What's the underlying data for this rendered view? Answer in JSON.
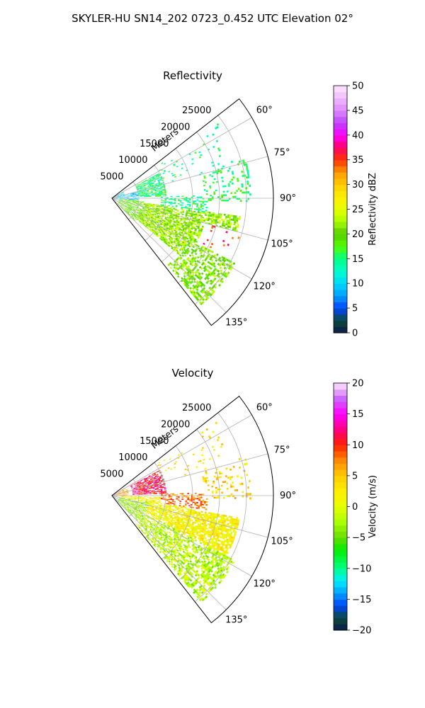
{
  "figure": {
    "title": "SKYLER-HU  SN14_202  0723_0.452 UTC Elevation 02°"
  },
  "chart_data": [
    {
      "type": "heatmap",
      "projection": "polar-sector",
      "title": "Reflectivity",
      "range_axis": {
        "label": "Meters",
        "ticks": [
          5000,
          10000,
          15000,
          20000,
          25000
        ],
        "tick_labels": [
          "5000",
          "10000",
          "15000",
          "20000",
          "25000"
        ],
        "lim": [
          0,
          30000
        ]
      },
      "azimuth_axis": {
        "unit": "degrees",
        "lim": [
          52,
          142
        ],
        "ticks": [
          60,
          75,
          90,
          105,
          120,
          135
        ],
        "tick_labels": [
          "60°",
          "75°",
          "90°",
          "105°",
          "120°",
          "135°"
        ]
      },
      "grid": true,
      "colorbar": {
        "label": "Reflectivity dBZ",
        "lim": [
          0,
          50
        ],
        "ticks": [
          0,
          5,
          10,
          15,
          20,
          25,
          30,
          35,
          40,
          45,
          50
        ],
        "tick_labels": [
          "0",
          "5",
          "10",
          "15",
          "20",
          "25",
          "30",
          "35",
          "40",
          "45",
          "50"
        ],
        "stops": [
          {
            "value": 0,
            "color": "#0a1a4a"
          },
          {
            "value": 2.5,
            "color": "#0c4a3a"
          },
          {
            "value": 5,
            "color": "#0044ff"
          },
          {
            "value": 7.5,
            "color": "#00a0ff"
          },
          {
            "value": 10,
            "color": "#00d8ff"
          },
          {
            "value": 12.5,
            "color": "#00ffcc"
          },
          {
            "value": 15,
            "color": "#00ff88"
          },
          {
            "value": 17.5,
            "color": "#55ff00"
          },
          {
            "value": 20,
            "color": "#55cc00"
          },
          {
            "value": 22.5,
            "color": "#aaff00"
          },
          {
            "value": 25,
            "color": "#e6ff00"
          },
          {
            "value": 27.5,
            "color": "#ffee00"
          },
          {
            "value": 30,
            "color": "#ffcc00"
          },
          {
            "value": 32.5,
            "color": "#ff9900"
          },
          {
            "value": 35,
            "color": "#ff3300"
          },
          {
            "value": 37.5,
            "color": "#ff0066"
          },
          {
            "value": 40,
            "color": "#ff00ff"
          },
          {
            "value": 42.5,
            "color": "#bb44ff"
          },
          {
            "value": 45,
            "color": "#dd88ff"
          },
          {
            "value": 47.5,
            "color": "#eebbff"
          },
          {
            "value": 50,
            "color": "#ffe6ff"
          }
        ]
      },
      "regions": [
        {
          "r": [
            0,
            2600
          ],
          "az": [
            62,
            98
          ],
          "value": 10,
          "density": 0.45
        },
        {
          "r": [
            2600,
            5000
          ],
          "az": [
            75,
            95
          ],
          "value": 9,
          "density": 0.5
        },
        {
          "r": [
            5000,
            10000
          ],
          "az": [
            62,
            88
          ],
          "value": 15,
          "density": 0.6
        },
        {
          "r": [
            1500,
            6000
          ],
          "az": [
            95,
            135
          ],
          "value": 20,
          "density": 0.55
        },
        {
          "r": [
            6000,
            24000
          ],
          "az": [
            98,
            130
          ],
          "value": 22,
          "density": 0.72
        },
        {
          "r": [
            16000,
            26000
          ],
          "az": [
            118,
            140
          ],
          "value": 21,
          "density": 0.5
        },
        {
          "r": [
            9000,
            18000
          ],
          "az": [
            88,
            99
          ],
          "value": 15,
          "density": 0.35
        },
        {
          "r": [
            17000,
            26000
          ],
          "az": [
            74,
            92
          ],
          "value": 16,
          "density": 0.22
        },
        {
          "r": [
            10000,
            24000
          ],
          "az": [
            55,
            75
          ],
          "value": 15,
          "density": 0.06
        },
        {
          "r": [
            18000,
            25000
          ],
          "az": [
            105,
            118
          ],
          "value": 36,
          "density": 0.06
        }
      ]
    },
    {
      "type": "heatmap",
      "projection": "polar-sector",
      "title": "Velocity",
      "range_axis": {
        "label": "Meters",
        "ticks": [
          5000,
          10000,
          15000,
          20000,
          25000
        ],
        "tick_labels": [
          "5000",
          "10000",
          "15000",
          "20000",
          "25000"
        ],
        "lim": [
          0,
          30000
        ]
      },
      "azimuth_axis": {
        "unit": "degrees",
        "lim": [
          52,
          142
        ],
        "ticks": [
          60,
          75,
          90,
          105,
          120,
          135
        ],
        "tick_labels": [
          "60°",
          "75°",
          "90°",
          "105°",
          "120°",
          "135°"
        ]
      },
      "grid": true,
      "colorbar": {
        "label": "Velocity (m/s)",
        "lim": [
          -20,
          20
        ],
        "ticks": [
          -20,
          -15,
          -10,
          -5,
          0,
          5,
          10,
          15,
          20
        ],
        "tick_labels": [
          "−20",
          "−15",
          "−10",
          "−5",
          "0",
          "5",
          "10",
          "15",
          "20"
        ],
        "stops": [
          {
            "value": -20,
            "color": "#0a1a4a"
          },
          {
            "value": -18,
            "color": "#0c4a3a"
          },
          {
            "value": -16,
            "color": "#0044ff"
          },
          {
            "value": -14,
            "color": "#00a0ff"
          },
          {
            "value": -12,
            "color": "#00eeff"
          },
          {
            "value": -10,
            "color": "#00ff88"
          },
          {
            "value": -7,
            "color": "#00ee00"
          },
          {
            "value": -5,
            "color": "#66dd00"
          },
          {
            "value": -2.5,
            "color": "#aaff00"
          },
          {
            "value": 0,
            "color": "#e6ff00"
          },
          {
            "value": 2.5,
            "color": "#ffee00"
          },
          {
            "value": 5,
            "color": "#ffcc00"
          },
          {
            "value": 7.5,
            "color": "#ff8800"
          },
          {
            "value": 10,
            "color": "#ff2200"
          },
          {
            "value": 12,
            "color": "#ff0066"
          },
          {
            "value": 15,
            "color": "#ff00ff"
          },
          {
            "value": 17.5,
            "color": "#cc66ff"
          },
          {
            "value": 20,
            "color": "#ffe6ff"
          }
        ]
      },
      "regions": [
        {
          "r": [
            0,
            3000
          ],
          "az": [
            62,
            98
          ],
          "value": 6,
          "density": 0.45
        },
        {
          "r": [
            4000,
            10000
          ],
          "az": [
            62,
            88
          ],
          "value": 11,
          "density": 0.65
        },
        {
          "r": [
            2000,
            14000
          ],
          "az": [
            92,
            112
          ],
          "value": 2,
          "density": 0.7
        },
        {
          "r": [
            4000,
            24000
          ],
          "az": [
            100,
            125
          ],
          "value": 2,
          "density": 0.75
        },
        {
          "r": [
            1500,
            7000
          ],
          "az": [
            100,
            135
          ],
          "value": -3,
          "density": 0.6
        },
        {
          "r": [
            7000,
            26000
          ],
          "az": [
            118,
            140
          ],
          "value": -2,
          "density": 0.55
        },
        {
          "r": [
            9000,
            18000
          ],
          "az": [
            88,
            99
          ],
          "value": 8,
          "density": 0.4
        },
        {
          "r": [
            17000,
            26000
          ],
          "az": [
            74,
            92
          ],
          "value": 4,
          "density": 0.22
        },
        {
          "r": [
            10000,
            24000
          ],
          "az": [
            55,
            75
          ],
          "value": 3,
          "density": 0.06
        }
      ]
    }
  ]
}
